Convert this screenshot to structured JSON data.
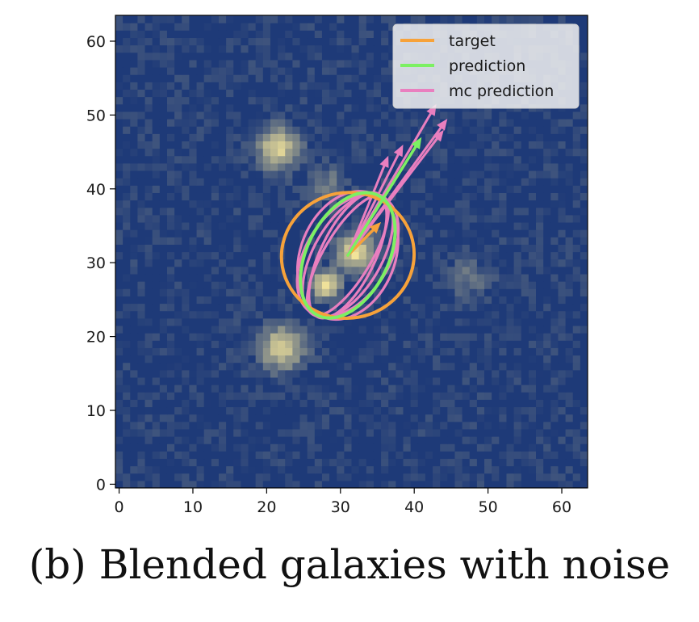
{
  "caption": "(b) Blended galaxies with noise",
  "colors": {
    "target": "#f7a23a",
    "prediction": "#7cf063",
    "mc_prediction": "#e97fbf",
    "background": "#1e3a78",
    "source": "#f2e39a"
  },
  "chart_data": {
    "type": "heatmap",
    "title": "",
    "xlabel": "",
    "ylabel": "",
    "xlim": [
      -0.5,
      63.5
    ],
    "ylim": [
      -0.5,
      63.5
    ],
    "xticks": [
      0,
      10,
      20,
      30,
      40,
      50,
      60
    ],
    "yticks": [
      0,
      10,
      20,
      30,
      40,
      50,
      60
    ],
    "grid": false,
    "legend_position": "top-right",
    "grid_size": 64,
    "noise_seed": 7,
    "sources": [
      {
        "x": 21.5,
        "y": 45.5,
        "sigma": 1.9,
        "amp": 0.85
      },
      {
        "x": 28.5,
        "y": 40.5,
        "sigma": 1.6,
        "amp": 0.35
      },
      {
        "x": 32.0,
        "y": 31.5,
        "sigma": 1.7,
        "amp": 1.0
      },
      {
        "x": 28.0,
        "y": 27.0,
        "sigma": 1.3,
        "amp": 1.0
      },
      {
        "x": 22.0,
        "y": 18.5,
        "sigma": 2.0,
        "amp": 0.85
      },
      {
        "x": 47.5,
        "y": 28.0,
        "sigma": 1.8,
        "amp": 0.3
      }
    ],
    "series": [
      {
        "name": "target",
        "ellipses": [
          {
            "cx": 31.0,
            "cy": 31.0,
            "a": 9.0,
            "b": 8.5,
            "angle_deg": 10
          }
        ],
        "arrows": [
          {
            "x0": 31.0,
            "y0": 31.0,
            "x1": 35.5,
            "y1": 35.5
          }
        ]
      },
      {
        "name": "prediction",
        "ellipses": [
          {
            "cx": 31.0,
            "cy": 31.0,
            "a": 9.1,
            "b": 5.5,
            "angle_deg": 63
          }
        ],
        "arrows": [
          {
            "x0": 31.0,
            "y0": 31.0,
            "x1": 41.0,
            "y1": 47.0
          }
        ]
      },
      {
        "name": "mc prediction",
        "ellipses": [
          {
            "cx": 31.0,
            "cy": 31.0,
            "a": 9.3,
            "b": 4.6,
            "angle_deg": 60
          },
          {
            "cx": 31.0,
            "cy": 31.0,
            "a": 9.3,
            "b": 3.7,
            "angle_deg": 64
          },
          {
            "cx": 31.0,
            "cy": 31.0,
            "a": 9.2,
            "b": 5.6,
            "angle_deg": 57
          },
          {
            "cx": 31.0,
            "cy": 31.0,
            "a": 9.0,
            "b": 6.4,
            "angle_deg": 68
          },
          {
            "cx": 31.0,
            "cy": 31.0,
            "a": 9.3,
            "b": 3.2,
            "angle_deg": 59
          }
        ],
        "arrows": [
          {
            "x0": 31.0,
            "y0": 31.0,
            "x1": 43.0,
            "y1": 51.5
          },
          {
            "x0": 31.0,
            "y0": 31.0,
            "x1": 44.5,
            "y1": 49.5
          },
          {
            "x0": 31.0,
            "y0": 31.0,
            "x1": 44.0,
            "y1": 48.0
          },
          {
            "x0": 31.0,
            "y0": 31.0,
            "x1": 38.5,
            "y1": 46.0
          },
          {
            "x0": 31.0,
            "y0": 31.0,
            "x1": 36.5,
            "y1": 44.5
          }
        ]
      }
    ]
  }
}
